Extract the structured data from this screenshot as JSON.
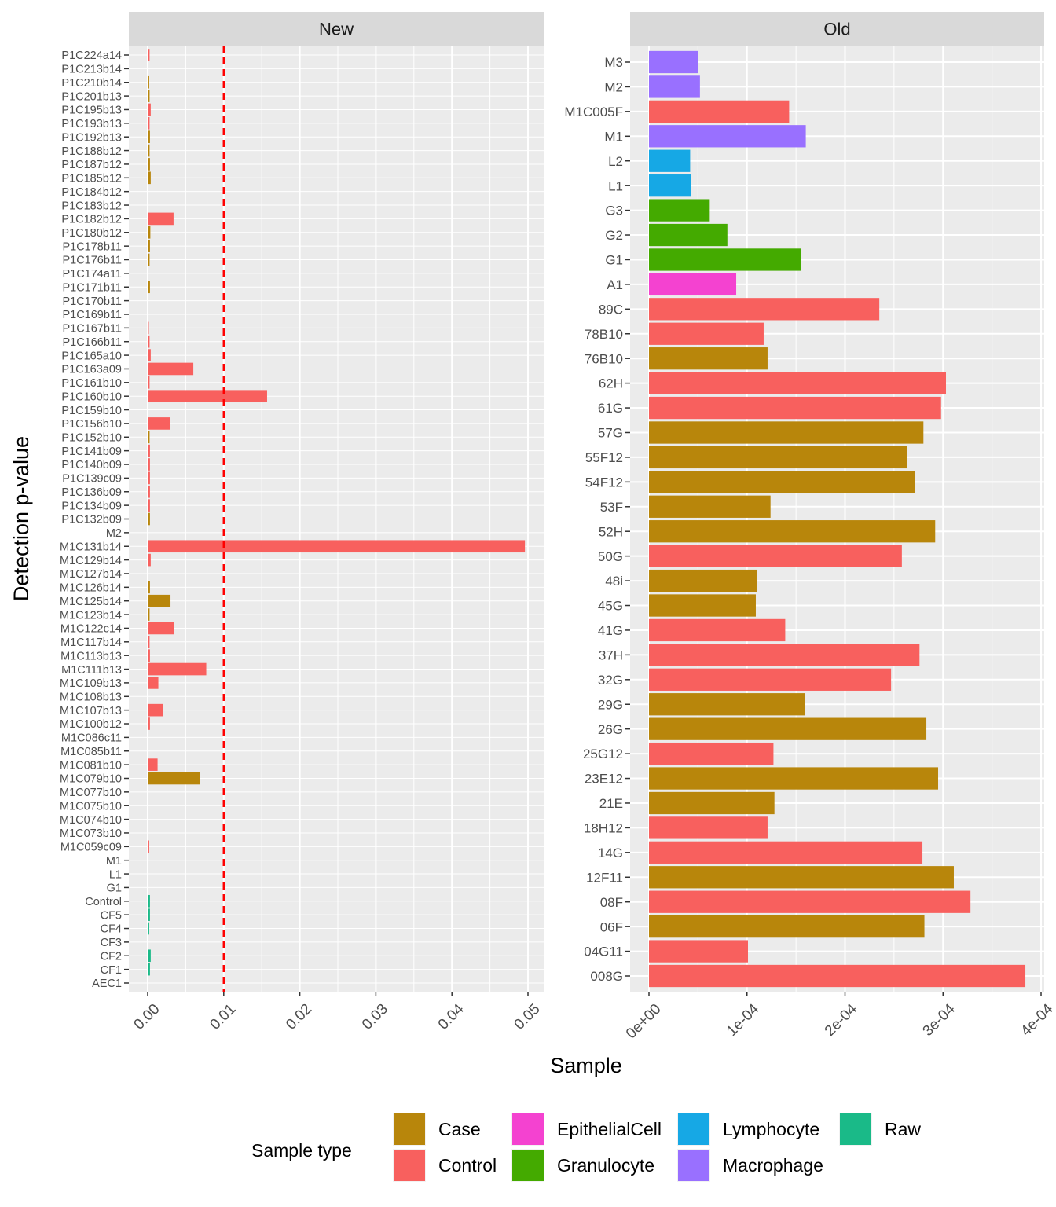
{
  "chart_data": [
    {
      "type": "bar",
      "orientation": "horizontal",
      "facet": "New",
      "xlim": [
        0,
        0.05
      ],
      "x_ticks": [
        "0.00",
        "0.01",
        "0.02",
        "0.03",
        "0.04",
        "0.05"
      ],
      "threshold_line": {
        "value": 0.01,
        "color": "#ff0000",
        "style": "dashed"
      },
      "categories": [
        "P1C224a14",
        "P1C213b14",
        "P1C210b14",
        "P1C201b13",
        "P1C195b13",
        "P1C193b13",
        "P1C192b13",
        "P1C188b12",
        "P1C187b12",
        "P1C185b12",
        "P1C184b12",
        "P1C183b12",
        "P1C182b12",
        "P1C180b12",
        "P1C178b11",
        "P1C176b11",
        "P1C174a11",
        "P1C171b11",
        "P1C170b11",
        "P1C169b11",
        "P1C167b11",
        "P1C166b11",
        "P1C165a10",
        "P1C163a09",
        "P1C161b10",
        "P1C160b10",
        "P1C159b10",
        "P1C156b10",
        "P1C152b10",
        "P1C141b09",
        "P1C140b09",
        "P1C139c09",
        "P1C136b09",
        "P1C134b09",
        "P1C132b09",
        "M2",
        "M1C131b14",
        "M1C129b14",
        "M1C127b14",
        "M1C126b14",
        "M1C125b14",
        "M1C123b14",
        "M1C122c14",
        "M1C117b14",
        "M1C113b13",
        "M1C111b13",
        "M1C109b13",
        "M1C108b13",
        "M1C107b13",
        "M1C100b12",
        "M1C086c11",
        "M1C085b11",
        "M1C081b10",
        "M1C079b10",
        "M1C077b10",
        "M1C075b10",
        "M1C074b10",
        "M1C073b10",
        "M1C059c09",
        "M1",
        "L1",
        "G1",
        "Control",
        "CF5",
        "CF4",
        "CF3",
        "CF2",
        "CF1",
        "AEC1"
      ],
      "values": [
        0.00025,
        0.0001,
        0.0002,
        0.00025,
        0.0004,
        0.00025,
        0.0003,
        0.00025,
        0.0003,
        0.0004,
        0.0001,
        0.0001,
        0.0034,
        0.00035,
        0.0003,
        0.00025,
        0.0001,
        0.0003,
        0.0001,
        0.0001,
        0.00015,
        0.00025,
        0.0004,
        0.006,
        0.00025,
        0.0157,
        0.0001,
        0.0029,
        0.00025,
        0.0003,
        0.0003,
        0.0003,
        0.0003,
        0.0003,
        0.0003,
        0.0001,
        0.0496,
        0.0004,
        0.0001,
        0.0003,
        0.003,
        0.00025,
        0.0035,
        0.00025,
        0.0003,
        0.0077,
        0.0014,
        0.0001,
        0.002,
        0.0003,
        0.0001,
        0.0001,
        0.0013,
        0.0069,
        0.0001,
        0.0001,
        0.0001,
        0.0001,
        0.0002,
        0.0001,
        0.0001,
        0.0001,
        0.0003,
        0.0003,
        0.0002,
        0.0001,
        0.0004,
        0.0003,
        0.0001
      ],
      "types": [
        "Control",
        "Control",
        "Case",
        "Case",
        "Control",
        "Control",
        "Case",
        "Case",
        "Case",
        "Case",
        "Control",
        "Case",
        "Control",
        "Case",
        "Case",
        "Case",
        "Case",
        "Case",
        "Control",
        "Control",
        "Control",
        "Control",
        "Control",
        "Control",
        "Control",
        "Control",
        "Control",
        "Control",
        "Case",
        "Control",
        "Control",
        "Control",
        "Control",
        "Control",
        "Case",
        "Macrophage",
        "Control",
        "Control",
        "Case",
        "Case",
        "Case",
        "Case",
        "Control",
        "Control",
        "Control",
        "Control",
        "Control",
        "Case",
        "Control",
        "Control",
        "Case",
        "Control",
        "Control",
        "Case",
        "Case",
        "Case",
        "Case",
        "Case",
        "Control",
        "Macrophage",
        "Lymphocyte",
        "Granulocyte",
        "Raw",
        "Raw",
        "Raw",
        "Raw",
        "Raw",
        "Raw",
        "EpithelialCell"
      ]
    },
    {
      "type": "bar",
      "orientation": "horizontal",
      "facet": "Old",
      "xlim": [
        0,
        0.0004
      ],
      "x_ticks": [
        "0e+00",
        "1e-04",
        "2e-04",
        "3e-04",
        "4e-04"
      ],
      "categories": [
        "M3",
        "M2",
        "M1C005F",
        "M1",
        "L2",
        "L1",
        "G3",
        "G2",
        "G1",
        "A1",
        "89C",
        "78B10",
        "76B10",
        "62H",
        "61G",
        "57G",
        "55F12",
        "54F12",
        "53F",
        "52H",
        "50G",
        "48i",
        "45G",
        "41G",
        "37H",
        "32G",
        "29G",
        "26G",
        "25G12",
        "23E12",
        "21E",
        "18H12",
        "14G",
        "12F11",
        "08F",
        "06F",
        "04G11",
        "008G"
      ],
      "values": [
        5e-05,
        5.2e-05,
        0.000143,
        0.00016,
        4.2e-05,
        4.3e-05,
        6.2e-05,
        8e-05,
        0.000155,
        8.9e-05,
        0.000235,
        0.000117,
        0.000121,
        0.000303,
        0.000298,
        0.00028,
        0.000263,
        0.000271,
        0.000124,
        0.000292,
        0.000258,
        0.00011,
        0.000109,
        0.000139,
        0.000276,
        0.000247,
        0.000159,
        0.000283,
        0.000127,
        0.000295,
        0.000128,
        0.000121,
        0.000279,
        0.000311,
        0.000328,
        0.000281,
        0.000101,
        0.000384
      ],
      "types": [
        "Macrophage",
        "Macrophage",
        "Control",
        "Macrophage",
        "Lymphocyte",
        "Lymphocyte",
        "Granulocyte",
        "Granulocyte",
        "Granulocyte",
        "EpithelialCell",
        "Control",
        "Control",
        "Case",
        "Control",
        "Control",
        "Case",
        "Case",
        "Case",
        "Case",
        "Case",
        "Control",
        "Case",
        "Case",
        "Control",
        "Control",
        "Control",
        "Case",
        "Case",
        "Control",
        "Case",
        "Case",
        "Control",
        "Control",
        "Case",
        "Control",
        "Case",
        "Control",
        "Control"
      ]
    }
  ],
  "axes": {
    "ylabel": "Detection p-value",
    "xlabel": "Sample"
  },
  "legend": {
    "title": "Sample type",
    "placement": "bottom",
    "items": [
      {
        "label": "Case",
        "color": "#B8860B"
      },
      {
        "label": "Control",
        "color": "#F8605E"
      },
      {
        "label": "EpithelialCell",
        "color": "#F442D0"
      },
      {
        "label": "Granulocyte",
        "color": "#44AA00"
      },
      {
        "label": "Lymphocyte",
        "color": "#16A8E5"
      },
      {
        "label": "Macrophage",
        "color": "#9970FF"
      },
      {
        "label": "Raw",
        "color": "#1ABA88"
      }
    ]
  },
  "colors": {
    "panel_background": "#EBEBEB",
    "grid": "#FFFFFF",
    "strip_background": "#D9D9D9"
  }
}
